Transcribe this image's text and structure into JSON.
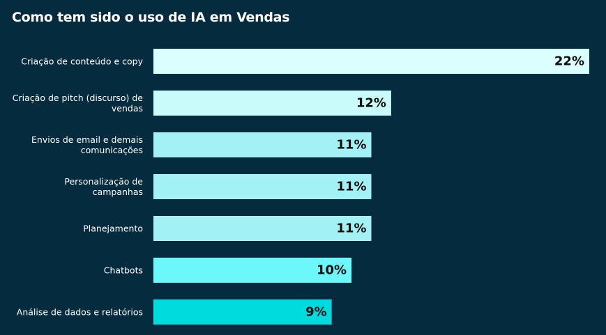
{
  "colors": {
    "background": "#052b3e",
    "title_text": "#ffffff",
    "value_text": "#0b0b0b",
    "bar_colors": [
      "#dafffe",
      "#c9fbfa",
      "#a2f2f5",
      "#a2f2f5",
      "#a2f2f5",
      "#6cf8fb",
      "#00dbde"
    ]
  },
  "chart_data": {
    "type": "bar",
    "orientation": "horizontal",
    "title": "Como tem sido o uso de IA em Vendas",
    "xlabel": "",
    "ylabel": "",
    "grid": false,
    "legend": "none",
    "xlim": [
      0,
      22
    ],
    "categories": [
      [
        "Criação de conteúdo e copy"
      ],
      [
        "Criação de pitch (discurso) de",
        "vendas"
      ],
      [
        "Envios de email e demais",
        "comunicações"
      ],
      [
        "Personalização de",
        "campanhas"
      ],
      [
        "Planejamento"
      ],
      [
        "Chatbots"
      ],
      [
        "Análise de dados e relatórios"
      ]
    ],
    "values": [
      22,
      12,
      11,
      11,
      11,
      10,
      9
    ],
    "value_labels": [
      "22%",
      "12%",
      "11%",
      "11%",
      "11%",
      "10%",
      "9%"
    ]
  }
}
